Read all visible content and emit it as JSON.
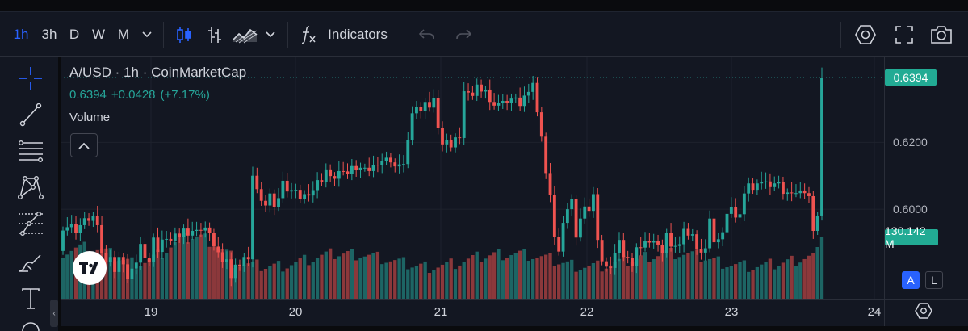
{
  "toolbar": {
    "intervals": [
      "1h",
      "3h",
      "D",
      "W",
      "M"
    ],
    "active_interval": "1h",
    "indicators_label": "Indicators",
    "icons": [
      "chevron-down-icon",
      "candles-icon",
      "bars-icon",
      "area-icon",
      "chevron-down-icon",
      "fx-icon",
      "undo-icon",
      "redo-icon",
      "settings-icon",
      "fullscreen-icon",
      "camera-icon"
    ]
  },
  "sidebar": {
    "tools": [
      "crosshair-icon",
      "trendline-icon",
      "fib-icon",
      "pattern-icon",
      "prediction-icon",
      "brush-icon",
      "text-icon"
    ]
  },
  "legend": {
    "title": "A/USD · 1h · CoinMarketCap",
    "last": "0.6394",
    "change": "+0.0428",
    "change_pct": "(+7.17%)",
    "volume_label": "Volume"
  },
  "price_tags": {
    "last_price": "0.6394",
    "last_volume": "130.142 M"
  },
  "scale_buttons": {
    "auto": "A",
    "log": "L"
  },
  "colors": {
    "up": "#26a69a",
    "down": "#ef5350",
    "accent": "#2962ff",
    "background": "#131722"
  },
  "chart_data": {
    "type": "candlestick",
    "interval": "1h",
    "y_ticks": [
      "0.6200",
      "0.6000"
    ],
    "y_tick_values": [
      0.62,
      0.6
    ],
    "ylim": [
      0.5732,
      0.6457
    ],
    "x_ticks": [
      "19",
      "20",
      "21",
      "22",
      "23",
      "24"
    ],
    "x_tick_values": [
      19,
      20,
      21,
      22,
      23,
      24
    ],
    "volume_max_m": 130.142,
    "candles_close": [
      0.5936,
      0.5946,
      0.5956,
      0.593,
      0.5952,
      0.5973,
      0.5965,
      0.598,
      0.5952,
      0.5869,
      0.5843,
      0.5857,
      0.5812,
      0.5857,
      0.5835,
      0.5792,
      0.5822,
      0.584,
      0.5896,
      0.5855,
      0.5842,
      0.5915,
      0.5872,
      0.5909,
      0.5911,
      0.5906,
      0.5927,
      0.5917,
      0.5942,
      0.5921,
      0.5935,
      0.5938,
      0.5936,
      0.5945,
      0.5929,
      0.5888,
      0.5871,
      0.5842,
      0.585,
      0.5794,
      0.5834,
      0.583,
      0.5857,
      0.585,
      0.61,
      0.606,
      0.6025,
      0.6011,
      0.6047,
      0.6007,
      0.6033,
      0.6085,
      0.6053,
      0.6057,
      0.6058,
      0.6031,
      0.6045,
      0.6041,
      0.6057,
      0.6087,
      0.608,
      0.6119,
      0.6099,
      0.6091,
      0.6114,
      0.6113,
      0.6105,
      0.6129,
      0.6118,
      0.6124,
      0.6124,
      0.6114,
      0.6133,
      0.6132,
      0.6145,
      0.6154,
      0.614,
      0.6128,
      0.6134,
      0.6135,
      0.6206,
      0.6287,
      0.6306,
      0.6293,
      0.6321,
      0.6304,
      0.6332,
      0.6242,
      0.6194,
      0.6208,
      0.6185,
      0.6215,
      0.6213,
      0.6353,
      0.6349,
      0.6339,
      0.6373,
      0.6352,
      0.6358,
      0.6321,
      0.631,
      0.6318,
      0.6324,
      0.6318,
      0.6331,
      0.6334,
      0.6309,
      0.634,
      0.6351,
      0.6378,
      0.629,
      0.6217,
      0.6108,
      0.6042,
      0.5918,
      0.5873,
      0.5959,
      0.6,
      0.603,
      0.5915,
      0.5972,
      0.6008,
      0.5995,
      0.6045,
      0.5908,
      0.5844,
      0.5828,
      0.5824,
      0.5869,
      0.5908,
      0.5857,
      0.5853,
      0.583,
      0.5886,
      0.5885,
      0.5905,
      0.59,
      0.5905,
      0.5894,
      0.5868,
      0.5929,
      0.5888,
      0.589,
      0.5895,
      0.5941,
      0.5921,
      0.5925,
      0.5881,
      0.587,
      0.5883,
      0.5972,
      0.5901,
      0.591,
      0.5931,
      0.5986,
      0.6006,
      0.5975,
      0.5985,
      0.6047,
      0.6077,
      0.6058,
      0.6077,
      0.6082,
      0.6083,
      0.6066,
      0.6077,
      0.6082,
      0.6046,
      0.605,
      0.6048,
      0.6048,
      0.6056,
      0.6048,
      0.6039,
      0.5935,
      0.5981,
      0.6394
    ],
    "candles_open": [
      0.5875,
      0.5936,
      0.5946,
      0.5956,
      0.593,
      0.5952,
      0.5973,
      0.5965,
      0.598,
      0.5952,
      0.5869,
      0.5843,
      0.5857,
      0.5812,
      0.5857,
      0.5835,
      0.5792,
      0.5822,
      0.584,
      0.5896,
      0.5855,
      0.5842,
      0.5915,
      0.5872,
      0.5909,
      0.5911,
      0.5906,
      0.5927,
      0.5917,
      0.5942,
      0.5921,
      0.5935,
      0.5938,
      0.5936,
      0.5945,
      0.5929,
      0.5888,
      0.5871,
      0.5842,
      0.585,
      0.5794,
      0.5834,
      0.583,
      0.5857,
      0.585,
      0.61,
      0.606,
      0.6025,
      0.6011,
      0.6047,
      0.6007,
      0.6033,
      0.6085,
      0.6053,
      0.6057,
      0.6058,
      0.6031,
      0.6045,
      0.6041,
      0.6057,
      0.6087,
      0.608,
      0.6119,
      0.6099,
      0.6091,
      0.6114,
      0.6113,
      0.6105,
      0.6129,
      0.6118,
      0.6124,
      0.6124,
      0.6114,
      0.6133,
      0.6132,
      0.6145,
      0.6154,
      0.614,
      0.6128,
      0.6134,
      0.6135,
      0.6206,
      0.6287,
      0.6306,
      0.6293,
      0.6321,
      0.6304,
      0.6332,
      0.6242,
      0.6194,
      0.6208,
      0.6185,
      0.6215,
      0.6213,
      0.6353,
      0.6349,
      0.6339,
      0.6373,
      0.6352,
      0.6358,
      0.6321,
      0.631,
      0.6318,
      0.6324,
      0.6318,
      0.6331,
      0.6334,
      0.6309,
      0.634,
      0.6351,
      0.6378,
      0.629,
      0.6217,
      0.6108,
      0.6042,
      0.5918,
      0.5873,
      0.5959,
      0.6,
      0.603,
      0.5915,
      0.5972,
      0.6008,
      0.5995,
      0.6045,
      0.5908,
      0.5844,
      0.5828,
      0.5824,
      0.5869,
      0.5908,
      0.5857,
      0.5853,
      0.583,
      0.5886,
      0.5885,
      0.5905,
      0.59,
      0.5905,
      0.5894,
      0.5868,
      0.5929,
      0.5888,
      0.589,
      0.5895,
      0.5941,
      0.5921,
      0.5925,
      0.5881,
      0.587,
      0.5883,
      0.5972,
      0.5901,
      0.591,
      0.5931,
      0.5986,
      0.6006,
      0.5975,
      0.5985,
      0.6047,
      0.6077,
      0.6058,
      0.6077,
      0.6082,
      0.6083,
      0.6066,
      0.6077,
      0.6082,
      0.6046,
      0.605,
      0.6048,
      0.6048,
      0.6056,
      0.6048,
      0.6039,
      0.5935,
      0.5981
    ]
  }
}
